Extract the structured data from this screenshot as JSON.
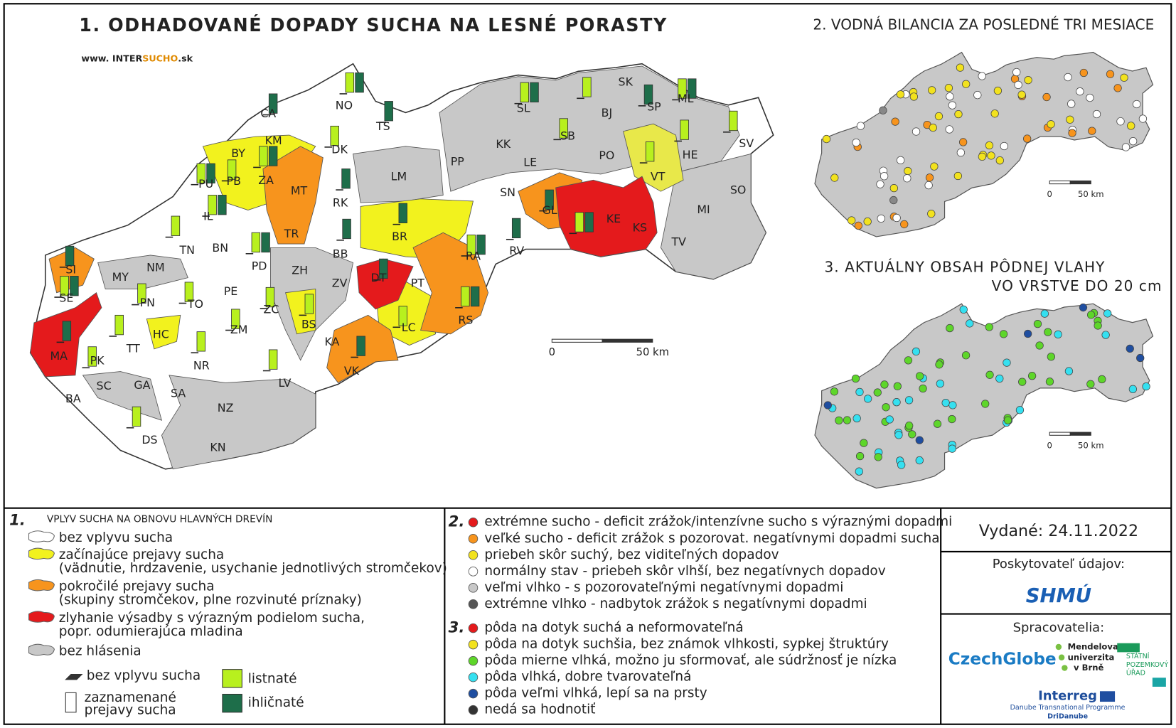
{
  "header": {
    "title": "1. ODHADOVANÉ DOPADY SUCHA NA LESNÉ PORASTY",
    "website": {
      "prefix": "www.",
      "inter": "INTER",
      "sucho": "SUCHO",
      "suffix": ".sk"
    }
  },
  "map1": {
    "districts": [
      "CA",
      "NO",
      "TS",
      "SL",
      "BJ",
      "SK",
      "SP",
      "ML",
      "SV",
      "HE",
      "VT",
      "KM",
      "BY",
      "ZA",
      "DK",
      "PU",
      "PB",
      "MT",
      "IL",
      "RK",
      "LM",
      "PP",
      "KK",
      "SB",
      "PO",
      "LE",
      "SN",
      "GL",
      "KE",
      "KS",
      "SO",
      "MI",
      "TN",
      "BN",
      "PD",
      "TR",
      "BB",
      "BR",
      "RA",
      "RV",
      "TV",
      "SI",
      "NM",
      "MY",
      "ZH",
      "DT",
      "PT",
      "SE",
      "PN",
      "TO",
      "PE",
      "ZV",
      "ZC",
      "BS",
      "HC",
      "ZM",
      "LC",
      "RS",
      "MA",
      "PK",
      "TT",
      "NR",
      "KA",
      "VK",
      "LV",
      "SC",
      "GA",
      "SA",
      "BA",
      "NZ",
      "DS",
      "KN"
    ],
    "scale": [
      "0",
      "50 km"
    ]
  },
  "map2": {
    "title": "2. VODNÁ BILANCIA ZA POSLEDNÉ TRI MESIACE",
    "scale": [
      "0",
      "50 km"
    ]
  },
  "map3": {
    "title_lines": [
      "3. AKTUÁLNY OBSAH PÔDNEJ VLAHY",
      "VO VRSTVE DO 20 cm"
    ],
    "scale": [
      "0",
      "50 km"
    ]
  },
  "legend1": {
    "number": "1.",
    "heading": "VPLYV SUCHA NA OBNOVU HLAVNÝCH DREVÍN",
    "items": [
      [
        "bez vplyvu sucha"
      ],
      [
        "začínajúce prejavy sucha",
        "(vädnutie, hrdzavenie, usychanie jednotlivých stromčekov)"
      ],
      [
        "pokročilé prejavy sucha",
        "(skupiny stromčekov, plne rozvinuté príznaky)"
      ],
      [
        "zlyhanie výsadby s výrazným podielom sucha,",
        "popr. odumierajúca mladina"
      ],
      [
        "bez hlásenia"
      ]
    ],
    "symbols": {
      "no_impact": "bez vplyvu sucha",
      "recorded": [
        "zaznamenané",
        "prejavy sucha"
      ],
      "deciduous": "listnaté",
      "coniferous": "ihličnaté"
    }
  },
  "legend2": {
    "number": "2.",
    "items": [
      "extrémne sucho - deficit zrážok/intenzívne sucho s výraznými dopadmi",
      "veľké sucho - deficit zrážok s pozorovat. negatívnymi dopadmi sucha",
      "priebeh skôr suchý, bez viditeľných dopadov",
      "normálny stav - priebeh skôr vlhší, bez negatívnych dopadov",
      "veľmi vlhko - s pozorovateľnými negatívnymi dopadmi",
      "extrémne vlhko - nadbytok zrážok s negatívnymi dopadmi"
    ]
  },
  "legend3": {
    "number": "3.",
    "items": [
      "pôda na dotyk suchá a neformovateľná",
      "pôda na dotyk suchšia, bez známok vlhkosti, sypkej štruktúry",
      "pôda mierne vlhká, možno ju sformovať, ale súdržnosť je nízka",
      "pôda vlhká, dobre tvarovateľná",
      "pôda veľmi vlhká, lepí sa na prsty",
      "nedá sa hodnotiť"
    ]
  },
  "issued": "Vydané: 24.11.2022",
  "provider": {
    "label": "Poskytovateľ údajov:",
    "logo": "SHMÚ"
  },
  "processors": {
    "label": "Spracovatelia:",
    "czechglobe": "CzechGlobe",
    "mendel": [
      "Mendelova",
      "univerzita",
      "v Brně"
    ],
    "spu": [
      "STÁTNÍ",
      "POZEMKOVÝ",
      "ÚŘAD"
    ],
    "interreg": "Interreg",
    "programme": "Danube Transnational Programme",
    "project": "DriDanube"
  }
}
